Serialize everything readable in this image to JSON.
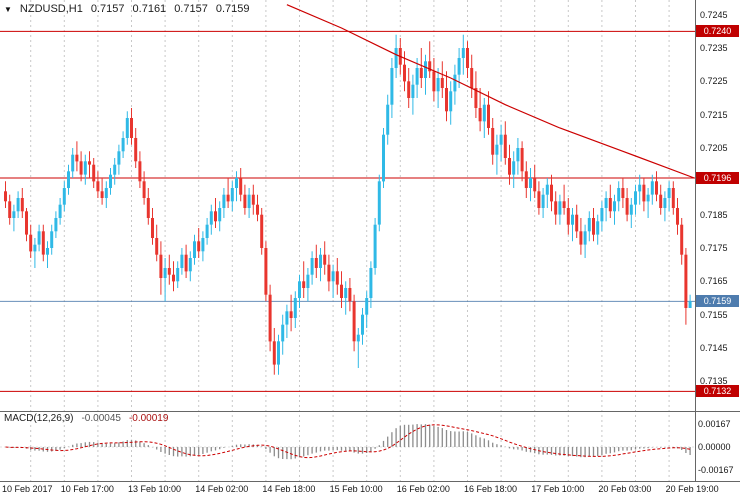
{
  "header": {
    "symbol": "NZDUSD,H1",
    "open": "0.7157",
    "high": "0.7161",
    "low": "0.7157",
    "close": "0.7159"
  },
  "icons": {
    "dropdown_arrow": "▼"
  },
  "macd_panel": {
    "label": "MACD(12,26,9)",
    "value_main": "-0.00045",
    "value_signal": "-0.00019",
    "ticks": [
      "0.00167",
      "0.00000",
      "-0.00167"
    ]
  },
  "price_axis": {
    "ticks": [
      "0.7245",
      "0.7235",
      "0.7225",
      "0.7215",
      "0.7205",
      "0.7195",
      "0.7185",
      "0.7175",
      "0.7165",
      "0.7155",
      "0.7145",
      "0.7135"
    ],
    "marked_levels": [
      {
        "price": 0.724,
        "label": "0.7240"
      },
      {
        "price": 0.7196,
        "label": "0.7196"
      },
      {
        "price": 0.7132,
        "label": "0.7132"
      }
    ],
    "current": {
      "price": 0.7159,
      "label": "0.7159"
    }
  },
  "time_axis": {
    "labels": [
      {
        "i": 0,
        "text": "10 Feb 2017"
      },
      {
        "i": 14,
        "text": "10 Feb 17:00"
      },
      {
        "i": 30,
        "text": "13 Feb 10:00"
      },
      {
        "i": 46,
        "text": "14 Feb 02:00"
      },
      {
        "i": 62,
        "text": "14 Feb 18:00"
      },
      {
        "i": 78,
        "text": "15 Feb 10:00"
      },
      {
        "i": 94,
        "text": "16 Feb 02:00"
      },
      {
        "i": 110,
        "text": "16 Feb 18:00"
      },
      {
        "i": 126,
        "text": "17 Feb 10:00"
      },
      {
        "i": 142,
        "text": "20 Feb 03:00"
      },
      {
        "i": 158,
        "text": "20 Feb 19:00"
      }
    ]
  },
  "colors": {
    "up": "#2fb9e6",
    "down": "#e8352e",
    "level_line": "#cc0000",
    "badge_red": "#c00000",
    "badge_blue": "#4e7cae",
    "current_line": "#7fa0c8",
    "grid": "#c8c8c8",
    "macd_hist": "#8c8c8c",
    "macd_signal": "#cc0000"
  },
  "chart_data": {
    "type": "candlestick",
    "symbol": "NZDUSD",
    "timeframe": "H1",
    "price_range": {
      "max": 0.7247,
      "min": 0.7127
    },
    "hlines": [
      0.724,
      0.7196,
      0.7132
    ],
    "current_price": 0.7159,
    "indicator": {
      "name": "MACD",
      "fast": 12,
      "slow": 26,
      "signal": 9,
      "value": -0.00045,
      "signal_value": -0.00019
    },
    "trendline": [
      {
        "i": 67,
        "p": 0.7248
      },
      {
        "i": 80,
        "p": 0.7241
      },
      {
        "i": 93,
        "p": 0.7233
      },
      {
        "i": 106,
        "p": 0.7226
      },
      {
        "i": 119,
        "p": 0.7218
      },
      {
        "i": 132,
        "p": 0.7211
      },
      {
        "i": 147,
        "p": 0.7204
      },
      {
        "i": 164,
        "p": 0.7196
      }
    ],
    "candles": [
      [
        0.7192,
        0.7195,
        0.7187,
        0.7189
      ],
      [
        0.7189,
        0.7191,
        0.7182,
        0.7184
      ],
      [
        0.7184,
        0.7188,
        0.718,
        0.7186
      ],
      [
        0.7186,
        0.7192,
        0.7184,
        0.719
      ],
      [
        0.719,
        0.7193,
        0.7184,
        0.7186
      ],
      [
        0.7186,
        0.7187,
        0.7177,
        0.7179
      ],
      [
        0.7179,
        0.7182,
        0.7172,
        0.7174
      ],
      [
        0.7174,
        0.7178,
        0.7169,
        0.7176
      ],
      [
        0.7176,
        0.7182,
        0.7174,
        0.718
      ],
      [
        0.718,
        0.7182,
        0.7171,
        0.7173
      ],
      [
        0.7173,
        0.7177,
        0.7169,
        0.7175
      ],
      [
        0.7175,
        0.7182,
        0.7173,
        0.718
      ],
      [
        0.718,
        0.7186,
        0.7178,
        0.7184
      ],
      [
        0.7184,
        0.719,
        0.7182,
        0.7188
      ],
      [
        0.7188,
        0.7195,
        0.7186,
        0.7193
      ],
      [
        0.7193,
        0.72,
        0.7191,
        0.7198
      ],
      [
        0.7198,
        0.7205,
        0.7196,
        0.7203
      ],
      [
        0.7203,
        0.7207,
        0.7198,
        0.7201
      ],
      [
        0.7201,
        0.7204,
        0.7195,
        0.7197
      ],
      [
        0.7197,
        0.7203,
        0.7194,
        0.7201
      ],
      [
        0.7201,
        0.7204,
        0.7196,
        0.72
      ],
      [
        0.72,
        0.7202,
        0.7193,
        0.7195
      ],
      [
        0.7195,
        0.7198,
        0.719,
        0.7192
      ],
      [
        0.7192,
        0.7196,
        0.7188,
        0.719
      ],
      [
        0.719,
        0.7195,
        0.7187,
        0.7193
      ],
      [
        0.7193,
        0.7199,
        0.7191,
        0.7197
      ],
      [
        0.7197,
        0.7202,
        0.7194,
        0.72
      ],
      [
        0.72,
        0.7206,
        0.7197,
        0.7204
      ],
      [
        0.7204,
        0.721,
        0.7202,
        0.7208
      ],
      [
        0.7208,
        0.7216,
        0.7206,
        0.7214
      ],
      [
        0.7214,
        0.7217,
        0.7206,
        0.7208
      ],
      [
        0.7208,
        0.7211,
        0.7199,
        0.7201
      ],
      [
        0.7201,
        0.7204,
        0.7193,
        0.7195
      ],
      [
        0.7195,
        0.7198,
        0.7188,
        0.719
      ],
      [
        0.719,
        0.7193,
        0.7182,
        0.7184
      ],
      [
        0.7184,
        0.7187,
        0.7176,
        0.7178
      ],
      [
        0.7178,
        0.7182,
        0.7171,
        0.7173
      ],
      [
        0.7173,
        0.7177,
        0.7161,
        0.7166
      ],
      [
        0.7166,
        0.7172,
        0.7159,
        0.7169
      ],
      [
        0.7169,
        0.7173,
        0.7164,
        0.7167
      ],
      [
        0.7167,
        0.7171,
        0.7162,
        0.7165
      ],
      [
        0.7165,
        0.7171,
        0.7163,
        0.7169
      ],
      [
        0.7169,
        0.7175,
        0.7167,
        0.7173
      ],
      [
        0.7173,
        0.7176,
        0.7166,
        0.7168
      ],
      [
        0.7168,
        0.7174,
        0.7165,
        0.7172
      ],
      [
        0.7172,
        0.7179,
        0.717,
        0.7177
      ],
      [
        0.7177,
        0.7181,
        0.7172,
        0.7174
      ],
      [
        0.7174,
        0.718,
        0.7171,
        0.7178
      ],
      [
        0.7178,
        0.7184,
        0.7176,
        0.7182
      ],
      [
        0.7182,
        0.7188,
        0.7179,
        0.7186
      ],
      [
        0.7186,
        0.719,
        0.7181,
        0.7183
      ],
      [
        0.7183,
        0.7189,
        0.718,
        0.7187
      ],
      [
        0.7187,
        0.7193,
        0.7184,
        0.7191
      ],
      [
        0.7191,
        0.7196,
        0.7187,
        0.7189
      ],
      [
        0.7189,
        0.7195,
        0.7186,
        0.7193
      ],
      [
        0.7193,
        0.7198,
        0.7189,
        0.7196
      ],
      [
        0.7196,
        0.7199,
        0.7189,
        0.7191
      ],
      [
        0.7191,
        0.7194,
        0.7185,
        0.7187
      ],
      [
        0.7187,
        0.7193,
        0.7184,
        0.7191
      ],
      [
        0.7191,
        0.7194,
        0.7185,
        0.7188
      ],
      [
        0.7188,
        0.7191,
        0.7183,
        0.7185
      ],
      [
        0.7185,
        0.7187,
        0.7173,
        0.7175
      ],
      [
        0.7175,
        0.7177,
        0.7159,
        0.7161
      ],
      [
        0.7161,
        0.7164,
        0.7144,
        0.7147
      ],
      [
        0.7147,
        0.7151,
        0.7137,
        0.714
      ],
      [
        0.714,
        0.7149,
        0.7137,
        0.7147
      ],
      [
        0.7147,
        0.7155,
        0.7143,
        0.7152
      ],
      [
        0.7152,
        0.7158,
        0.7148,
        0.7156
      ],
      [
        0.7156,
        0.7161,
        0.715,
        0.7154
      ],
      [
        0.7154,
        0.7162,
        0.7151,
        0.716
      ],
      [
        0.716,
        0.7167,
        0.7157,
        0.7165
      ],
      [
        0.7165,
        0.7171,
        0.716,
        0.7163
      ],
      [
        0.7163,
        0.7169,
        0.7159,
        0.7167
      ],
      [
        0.7167,
        0.7174,
        0.7164,
        0.7172
      ],
      [
        0.7172,
        0.7176,
        0.7166,
        0.7169
      ],
      [
        0.7169,
        0.7175,
        0.7165,
        0.7173
      ],
      [
        0.7173,
        0.7177,
        0.7167,
        0.717
      ],
      [
        0.717,
        0.7173,
        0.7162,
        0.7165
      ],
      [
        0.7165,
        0.717,
        0.716,
        0.7168
      ],
      [
        0.7168,
        0.7172,
        0.7161,
        0.7164
      ],
      [
        0.7164,
        0.7168,
        0.7157,
        0.716
      ],
      [
        0.716,
        0.7165,
        0.7155,
        0.7163
      ],
      [
        0.7163,
        0.7166,
        0.7156,
        0.7159
      ],
      [
        0.7159,
        0.7161,
        0.7144,
        0.7147
      ],
      [
        0.7147,
        0.7151,
        0.7139,
        0.7149
      ],
      [
        0.7149,
        0.7157,
        0.7146,
        0.7155
      ],
      [
        0.7155,
        0.7162,
        0.7151,
        0.716
      ],
      [
        0.716,
        0.7171,
        0.7157,
        0.7169
      ],
      [
        0.7169,
        0.7184,
        0.7167,
        0.7182
      ],
      [
        0.7182,
        0.7197,
        0.718,
        0.7195
      ],
      [
        0.7195,
        0.7211,
        0.7193,
        0.7209
      ],
      [
        0.7209,
        0.7221,
        0.7206,
        0.7218
      ],
      [
        0.7218,
        0.7232,
        0.7214,
        0.7229
      ],
      [
        0.7229,
        0.7239,
        0.7226,
        0.7235
      ],
      [
        0.7235,
        0.7238,
        0.7227,
        0.723
      ],
      [
        0.723,
        0.7234,
        0.7222,
        0.7225
      ],
      [
        0.7225,
        0.7229,
        0.7217,
        0.722
      ],
      [
        0.722,
        0.7227,
        0.7215,
        0.7224
      ],
      [
        0.7224,
        0.7232,
        0.722,
        0.7229
      ],
      [
        0.7229,
        0.7235,
        0.7223,
        0.7226
      ],
      [
        0.7226,
        0.7233,
        0.7221,
        0.7231
      ],
      [
        0.7231,
        0.7237,
        0.7226,
        0.7228
      ],
      [
        0.7228,
        0.7232,
        0.7219,
        0.7222
      ],
      [
        0.7222,
        0.7229,
        0.7217,
        0.7226
      ],
      [
        0.7226,
        0.7231,
        0.722,
        0.7223
      ],
      [
        0.7223,
        0.7228,
        0.7213,
        0.7216
      ],
      [
        0.7216,
        0.7225,
        0.7212,
        0.7222
      ],
      [
        0.7222,
        0.723,
        0.7218,
        0.7227
      ],
      [
        0.7227,
        0.7235,
        0.7223,
        0.7232
      ],
      [
        0.7232,
        0.7239,
        0.7227,
        0.7235
      ],
      [
        0.7235,
        0.7237,
        0.7226,
        0.7229
      ],
      [
        0.7229,
        0.7233,
        0.722,
        0.7223
      ],
      [
        0.7223,
        0.7228,
        0.7214,
        0.7217
      ],
      [
        0.7217,
        0.7223,
        0.721,
        0.7213
      ],
      [
        0.7213,
        0.722,
        0.7208,
        0.7218
      ],
      [
        0.7218,
        0.7222,
        0.7209,
        0.7211
      ],
      [
        0.7211,
        0.7214,
        0.72,
        0.7203
      ],
      [
        0.7203,
        0.7209,
        0.7197,
        0.7206
      ],
      [
        0.7206,
        0.7212,
        0.7201,
        0.7209
      ],
      [
        0.7209,
        0.7213,
        0.72,
        0.7202
      ],
      [
        0.7202,
        0.7206,
        0.7194,
        0.7197
      ],
      [
        0.7197,
        0.7204,
        0.7193,
        0.7201
      ],
      [
        0.7201,
        0.7208,
        0.7197,
        0.7205
      ],
      [
        0.7205,
        0.7207,
        0.7195,
        0.7198
      ],
      [
        0.7198,
        0.7201,
        0.719,
        0.7193
      ],
      [
        0.7193,
        0.7199,
        0.7189,
        0.7196
      ],
      [
        0.7196,
        0.72,
        0.719,
        0.7192
      ],
      [
        0.7192,
        0.7195,
        0.7185,
        0.7187
      ],
      [
        0.7187,
        0.7193,
        0.7184,
        0.7191
      ],
      [
        0.7191,
        0.7196,
        0.7187,
        0.7194
      ],
      [
        0.7194,
        0.7197,
        0.7186,
        0.7189
      ],
      [
        0.7189,
        0.7192,
        0.7182,
        0.7185
      ],
      [
        0.7185,
        0.7191,
        0.7182,
        0.7189
      ],
      [
        0.7189,
        0.7194,
        0.7185,
        0.7187
      ],
      [
        0.7187,
        0.719,
        0.7179,
        0.7182
      ],
      [
        0.7182,
        0.7187,
        0.7177,
        0.7185
      ],
      [
        0.7185,
        0.7188,
        0.7178,
        0.718
      ],
      [
        0.718,
        0.7184,
        0.7173,
        0.7176
      ],
      [
        0.7176,
        0.7182,
        0.7172,
        0.718
      ],
      [
        0.718,
        0.7186,
        0.7177,
        0.7184
      ],
      [
        0.7184,
        0.7187,
        0.7177,
        0.7179
      ],
      [
        0.7179,
        0.7185,
        0.7176,
        0.7183
      ],
      [
        0.7183,
        0.7189,
        0.718,
        0.7187
      ],
      [
        0.7187,
        0.7192,
        0.7183,
        0.719
      ],
      [
        0.719,
        0.7194,
        0.7184,
        0.7186
      ],
      [
        0.7186,
        0.7191,
        0.7182,
        0.7189
      ],
      [
        0.7189,
        0.7195,
        0.7186,
        0.7193
      ],
      [
        0.7193,
        0.7196,
        0.7187,
        0.719
      ],
      [
        0.719,
        0.7193,
        0.7183,
        0.7185
      ],
      [
        0.7185,
        0.719,
        0.7181,
        0.7188
      ],
      [
        0.7188,
        0.7194,
        0.7185,
        0.7192
      ],
      [
        0.7192,
        0.7197,
        0.7188,
        0.7194
      ],
      [
        0.7194,
        0.7196,
        0.7186,
        0.7189
      ],
      [
        0.7189,
        0.7193,
        0.7184,
        0.7191
      ],
      [
        0.7191,
        0.7197,
        0.7188,
        0.7195
      ],
      [
        0.7195,
        0.7198,
        0.7189,
        0.7191
      ],
      [
        0.7191,
        0.7194,
        0.7185,
        0.7187
      ],
      [
        0.7187,
        0.7192,
        0.7183,
        0.719
      ],
      [
        0.719,
        0.7195,
        0.7186,
        0.7193
      ],
      [
        0.7193,
        0.7195,
        0.7185,
        0.7187
      ],
      [
        0.7187,
        0.719,
        0.7179,
        0.7182
      ],
      [
        0.7182,
        0.7184,
        0.717,
        0.7173
      ],
      [
        0.7173,
        0.7175,
        0.7152,
        0.7157
      ],
      [
        0.7157,
        0.7161,
        0.7157,
        0.7159
      ]
    ]
  }
}
